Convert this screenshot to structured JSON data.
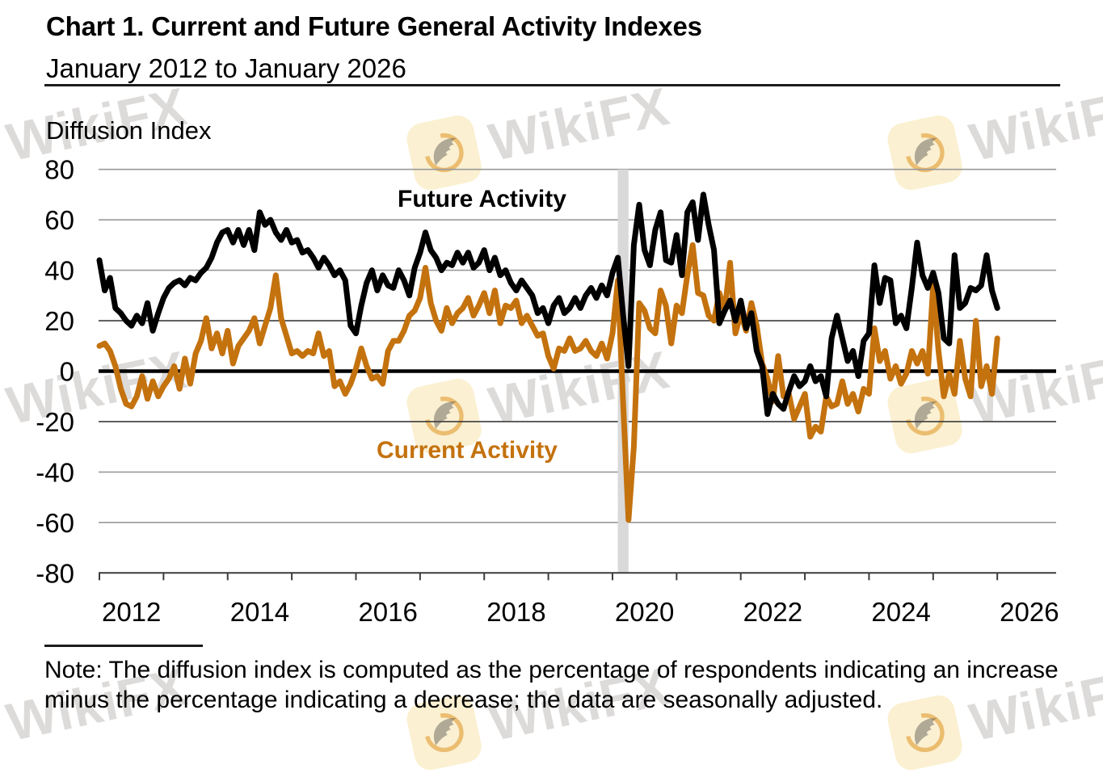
{
  "header": {
    "title": "Chart 1. Current and Future General Activity Indexes",
    "subtitle": "January 2012 to January 2026"
  },
  "chart_data": {
    "type": "line",
    "title": "Chart 1. Current and Future General Activity Indexes",
    "subtitle": "January 2012 to January 2026",
    "ylabel": "Diffusion Index",
    "xlabel": "",
    "x_start": "2012-01",
    "x_frequency": "monthly",
    "x_end": "2026-01",
    "xlim_years": [
      2012.0,
      2026.9
    ],
    "ylim": [
      -80,
      80
    ],
    "y_ticks": [
      80,
      60,
      40,
      20,
      0,
      -20,
      -40,
      -60,
      -80
    ],
    "x_tick_years": [
      2012,
      2013,
      2014,
      2015,
      2016,
      2017,
      2018,
      2019,
      2020,
      2021,
      2022,
      2023,
      2024,
      2025,
      2026
    ],
    "x_tick_labels": [
      "2012",
      "2014",
      "2016",
      "2018",
      "2020",
      "2022",
      "2024",
      "2026"
    ],
    "grid": "horizontal",
    "legend_position": "inline-labels",
    "zero_line_color": "#000000",
    "gridline_color": "#999999",
    "gridline_dark_color": "#3c3c3c",
    "recession_band": {
      "from": "2020-02",
      "to": "2020-04",
      "color": "#d9d9d9"
    },
    "series": [
      {
        "name": "future_activity",
        "label": "Future Activity",
        "color": "#000000",
        "values": [
          44,
          32,
          37,
          25,
          23,
          20,
          18,
          22,
          19,
          27,
          16,
          23,
          29,
          33,
          35,
          36,
          34,
          37,
          36,
          39,
          41,
          45,
          51,
          55,
          56,
          51,
          56,
          50,
          56,
          48,
          63,
          58,
          60,
          55,
          52,
          56,
          51,
          52,
          47,
          48,
          45,
          41,
          45,
          42,
          38,
          40,
          36,
          18,
          15,
          26,
          35,
          40,
          32,
          38,
          34,
          33,
          40,
          36,
          30,
          41,
          47,
          55,
          48,
          45,
          40,
          43,
          42,
          47,
          43,
          47,
          41,
          43,
          48,
          40,
          45,
          38,
          40,
          35,
          32,
          36,
          33,
          30,
          23,
          25,
          19,
          26,
          29,
          23,
          25,
          29,
          25,
          30,
          33,
          29,
          34,
          30,
          39,
          45,
          22,
          2,
          50,
          66,
          48,
          42,
          56,
          63,
          44,
          43,
          54,
          38,
          63,
          67,
          52,
          70,
          58,
          48,
          19,
          24,
          28,
          20,
          28,
          17,
          23,
          8,
          2,
          -17,
          -9,
          -13,
          -15,
          -8,
          -2,
          -6,
          -4,
          2,
          -4,
          -2,
          -10,
          13,
          22,
          13,
          4,
          8,
          -2,
          12,
          15,
          42,
          27,
          37,
          36,
          19,
          22,
          17,
          33,
          51,
          38,
          33,
          39,
          31,
          13,
          11,
          46,
          25,
          27,
          33,
          32,
          34,
          46,
          32,
          25
        ]
      },
      {
        "name": "current_activity",
        "label": "Current Activity",
        "color": "#c4720e",
        "values": [
          10,
          11,
          8,
          2,
          -7,
          -13,
          -14,
          -10,
          -2,
          -11,
          -4,
          -10,
          -6,
          -3,
          2,
          -7,
          5,
          -5,
          7,
          12,
          21,
          9,
          15,
          7,
          16,
          3,
          10,
          13,
          16,
          21,
          11,
          18,
          25,
          38,
          21,
          14,
          7,
          8,
          6,
          8,
          7,
          15,
          6,
          8,
          -6,
          -4,
          -9,
          -5,
          1,
          9,
          2,
          -3,
          -2,
          -5,
          8,
          12,
          12,
          16,
          22,
          24,
          29,
          41,
          27,
          20,
          16,
          25,
          19,
          23,
          25,
          29,
          22,
          26,
          31,
          23,
          32,
          19,
          26,
          25,
          28,
          19,
          22,
          18,
          14,
          15,
          6,
          1,
          9,
          8,
          13,
          8,
          9,
          12,
          8,
          6,
          11,
          5,
          15,
          36,
          -13,
          -59,
          -30,
          27,
          24,
          17,
          15,
          32,
          26,
          11,
          26,
          23,
          38,
          50,
          31,
          30,
          22,
          20,
          31,
          24,
          43,
          15,
          23,
          16,
          27,
          18,
          3,
          -3,
          -12,
          6,
          -10,
          -9,
          -19,
          -14,
          -9,
          -26,
          -22,
          -24,
          -10,
          -14,
          -13,
          -4,
          -13,
          -9,
          -16,
          -7,
          -9,
          17,
          4,
          8,
          -3,
          2,
          -5,
          -1,
          8,
          3,
          8,
          -1,
          34,
          8,
          -10,
          -1,
          -9,
          12,
          -3,
          -10,
          20,
          -6,
          2,
          -9,
          13
        ]
      }
    ]
  },
  "note": {
    "line1": "Note: The diffusion index is computed as the percentage of respondents indicating an increase",
    "line2": "minus the percentage indicating a decrease; the data are seasonally adjusted."
  },
  "watermark": {
    "text": "WikiFX",
    "logo": "wikifx-eagle-logo"
  }
}
